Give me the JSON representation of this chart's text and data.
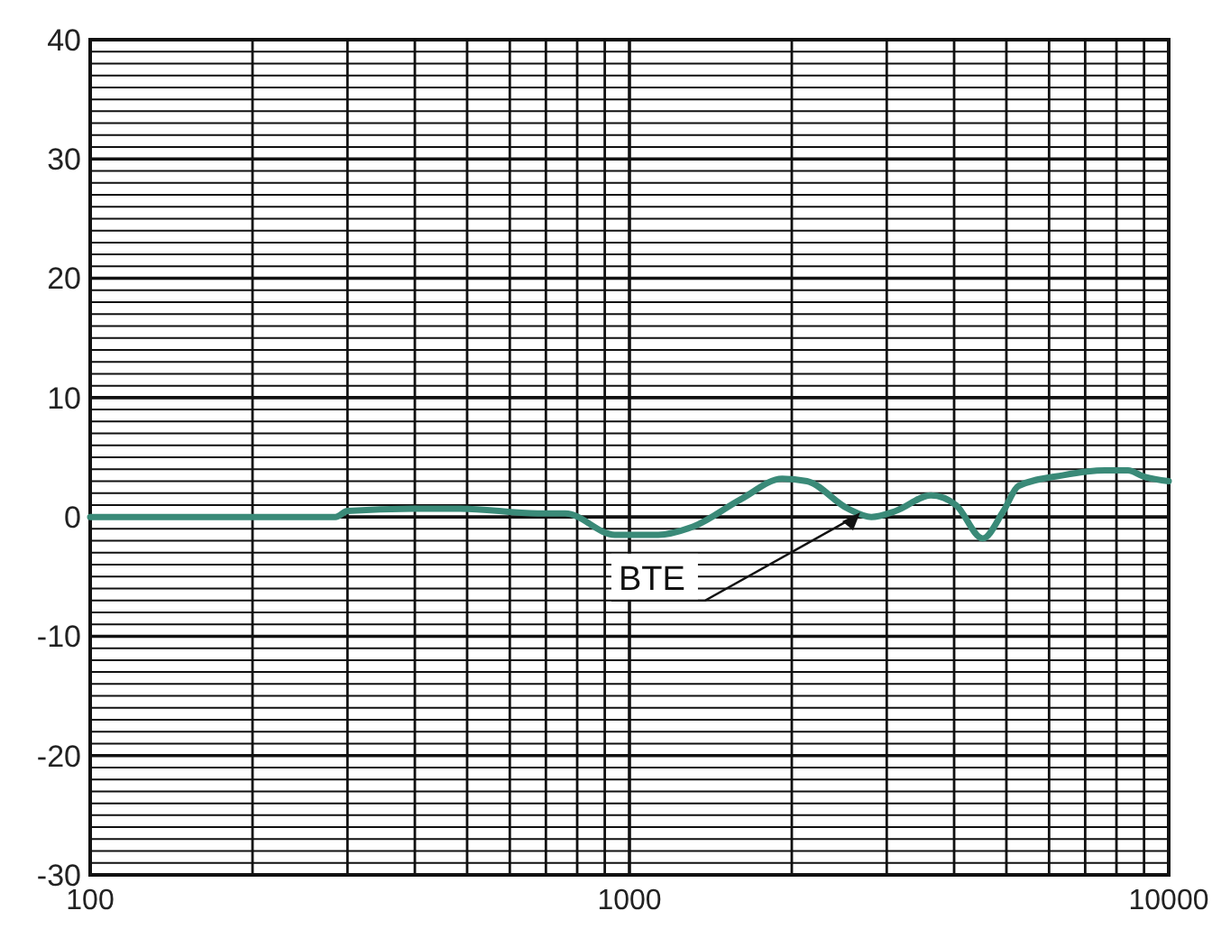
{
  "chart_data": {
    "type": "line",
    "log": "x",
    "grid": true,
    "xlim": [
      100,
      10000
    ],
    "ylim": [
      -30,
      40
    ],
    "xticks": [
      100,
      {
        "value": 200,
        "label": null
      },
      {
        "value": 300,
        "label": null
      },
      {
        "value": 400,
        "label": null
      },
      {
        "value": 500,
        "label": null
      },
      {
        "value": 600,
        "label": null
      },
      {
        "value": 700,
        "label": null
      },
      {
        "value": 800,
        "label": null
      },
      {
        "value": 900,
        "label": null
      },
      1000,
      {
        "value": 2000,
        "label": null
      },
      {
        "value": 3000,
        "label": null
      },
      {
        "value": 4000,
        "label": null
      },
      {
        "value": 5000,
        "label": null
      },
      {
        "value": 6000,
        "label": null
      },
      {
        "value": 7000,
        "label": null
      },
      {
        "value": 8000,
        "label": null
      },
      {
        "value": 9000,
        "label": null
      },
      10000
    ],
    "yticks": [
      -30,
      {
        "value": -29,
        "label": null
      },
      {
        "value": -28,
        "label": null
      },
      {
        "value": -27,
        "label": null
      },
      {
        "value": -26,
        "label": null
      },
      {
        "value": -25,
        "label": null
      },
      {
        "value": -24,
        "label": null
      },
      {
        "value": -23,
        "label": null
      },
      {
        "value": -22,
        "label": null
      },
      {
        "value": -21,
        "label": null
      },
      -20,
      {
        "value": -19,
        "label": null
      },
      {
        "value": -18,
        "label": null
      },
      {
        "value": -17,
        "label": null
      },
      {
        "value": -16,
        "label": null
      },
      {
        "value": -15,
        "label": null
      },
      {
        "value": -14,
        "label": null
      },
      {
        "value": -13,
        "label": null
      },
      {
        "value": -12,
        "label": null
      },
      {
        "value": -11,
        "label": null
      },
      -10,
      {
        "value": -9,
        "label": null
      },
      {
        "value": -8,
        "label": null
      },
      {
        "value": -7,
        "label": null
      },
      {
        "value": -6,
        "label": null
      },
      {
        "value": -5,
        "label": null
      },
      {
        "value": -4,
        "label": null
      },
      {
        "value": -3,
        "label": null
      },
      {
        "value": -2,
        "label": null
      },
      {
        "value": -1,
        "label": null
      },
      0,
      {
        "value": 1,
        "label": null
      },
      {
        "value": 2,
        "label": null
      },
      {
        "value": 3,
        "label": null
      },
      {
        "value": 4,
        "label": null
      },
      {
        "value": 5,
        "label": null
      },
      {
        "value": 6,
        "label": null
      },
      {
        "value": 7,
        "label": null
      },
      {
        "value": 8,
        "label": null
      },
      {
        "value": 9,
        "label": null
      },
      10,
      {
        "value": 11,
        "label": null
      },
      {
        "value": 12,
        "label": null
      },
      {
        "value": 13,
        "label": null
      },
      {
        "value": 14,
        "label": null
      },
      {
        "value": 15,
        "label": null
      },
      {
        "value": 16,
        "label": null
      },
      {
        "value": 17,
        "label": null
      },
      {
        "value": 18,
        "label": null
      },
      {
        "value": 19,
        "label": null
      },
      20,
      {
        "value": 21,
        "label": null
      },
      {
        "value": 22,
        "label": null
      },
      {
        "value": 23,
        "label": null
      },
      {
        "value": 24,
        "label": null
      },
      {
        "value": 25,
        "label": null
      },
      {
        "value": 26,
        "label": null
      },
      {
        "value": 27,
        "label": null
      },
      {
        "value": 28,
        "label": null
      },
      {
        "value": 29,
        "label": null
      },
      30,
      {
        "value": 31,
        "label": null
      },
      {
        "value": 32,
        "label": null
      },
      {
        "value": 33,
        "label": null
      },
      {
        "value": 34,
        "label": null
      },
      {
        "value": 35,
        "label": null
      },
      {
        "value": 36,
        "label": null
      },
      {
        "value": 37,
        "label": null
      },
      {
        "value": 38,
        "label": null
      },
      {
        "value": 39,
        "label": null
      },
      40
    ],
    "series": [
      {
        "color": "#3a8a78",
        "x": [
          100,
          285,
          300,
          397,
          486,
          676,
          760,
          940,
          1131,
          1314,
          1611,
          1920,
          2134,
          2541,
          2809,
          3117,
          3623,
          4032,
          4518,
          4938,
          5266,
          6376,
          7609,
          8406,
          8967,
          10000
        ],
        "values": [
          0,
          0,
          0.5,
          0.7,
          0.7,
          0.3,
          0.3,
          -1.5,
          -1.5,
          -0.8,
          1.5,
          3.2,
          3.0,
          0.7,
          0,
          0.5,
          1.8,
          1.0,
          -1.8,
          0.5,
          2.6,
          3.5,
          3.9,
          3.9,
          3.4,
          3.0
        ]
      }
    ],
    "annotations": [
      {
        "text": "BTE",
        "x": 2700,
        "y": 0.7
      }
    ]
  }
}
